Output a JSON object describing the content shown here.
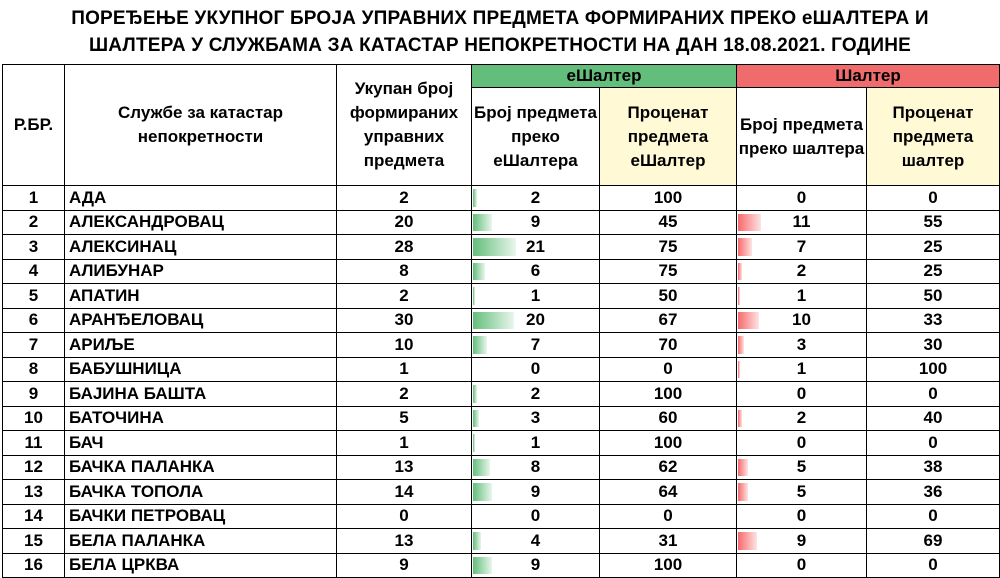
{
  "title": {
    "line1": "ПОРЕЂЕЊЕ УКУПНОГ БРОЈА УПРАВНИХ ПРЕДМЕТА ФОРМИРАНИХ ПРЕКО еШАЛТЕРА И",
    "line2": "ШАЛТЕРА У СЛУЖБАМА ЗА КАТАСТАР НЕПОКРЕТНОСТИ НА ДАН 18.08.2021. ГОДИНЕ"
  },
  "headers": {
    "rb": "Р.БР.",
    "service": "Службе за катастар непокретности",
    "total": "Укупан број формираних управних предмета",
    "group_e": "еШалтер",
    "group_s": "Шалтер",
    "e_count": "Број предмета преко еШалтера",
    "e_pct": "Проценат предмета еШалтер",
    "s_count": "Број предмета преко шалтера",
    "s_pct": "Проценат предмета шалтер"
  },
  "colors": {
    "eshalter_green": "#63be7b",
    "shalter_red": "#f06b6b",
    "percent_header_bg": "#fff9d6"
  },
  "bar_scale_max": 30,
  "rows": [
    {
      "rb": "1",
      "name": "АДА",
      "total": "2",
      "e_count": "2",
      "e_pct": "100",
      "s_count": "0",
      "s_pct": "0"
    },
    {
      "rb": "2",
      "name": "АЛЕКСАНДРОВАЦ",
      "total": "20",
      "e_count": "9",
      "e_pct": "45",
      "s_count": "11",
      "s_pct": "55"
    },
    {
      "rb": "3",
      "name": "АЛЕКСИНАЦ",
      "total": "28",
      "e_count": "21",
      "e_pct": "75",
      "s_count": "7",
      "s_pct": "25"
    },
    {
      "rb": "4",
      "name": "АЛИБУНАР",
      "total": "8",
      "e_count": "6",
      "e_pct": "75",
      "s_count": "2",
      "s_pct": "25"
    },
    {
      "rb": "5",
      "name": "АПАТИН",
      "total": "2",
      "e_count": "1",
      "e_pct": "50",
      "s_count": "1",
      "s_pct": "50"
    },
    {
      "rb": "6",
      "name": "АРАНЂЕЛОВАЦ",
      "total": "30",
      "e_count": "20",
      "e_pct": "67",
      "s_count": "10",
      "s_pct": "33"
    },
    {
      "rb": "7",
      "name": "АРИЉЕ",
      "total": "10",
      "e_count": "7",
      "e_pct": "70",
      "s_count": "3",
      "s_pct": "30"
    },
    {
      "rb": "8",
      "name": "БАБУШНИЦА",
      "total": "1",
      "e_count": "0",
      "e_pct": "0",
      "s_count": "1",
      "s_pct": "100"
    },
    {
      "rb": "9",
      "name": "БАЈИНА БАШТА",
      "total": "2",
      "e_count": "2",
      "e_pct": "100",
      "s_count": "0",
      "s_pct": "0"
    },
    {
      "rb": "10",
      "name": "БАТОЧИНА",
      "total": "5",
      "e_count": "3",
      "e_pct": "60",
      "s_count": "2",
      "s_pct": "40"
    },
    {
      "rb": "11",
      "name": "БАЧ",
      "total": "1",
      "e_count": "1",
      "e_pct": "100",
      "s_count": "0",
      "s_pct": "0"
    },
    {
      "rb": "12",
      "name": "БАЧКА ПАЛАНКА",
      "total": "13",
      "e_count": "8",
      "e_pct": "62",
      "s_count": "5",
      "s_pct": "38"
    },
    {
      "rb": "13",
      "name": "БАЧКА ТОПОЛА",
      "total": "14",
      "e_count": "9",
      "e_pct": "64",
      "s_count": "5",
      "s_pct": "36"
    },
    {
      "rb": "14",
      "name": "БАЧКИ ПЕТРОВАЦ",
      "total": "0",
      "e_count": "0",
      "e_pct": "0",
      "s_count": "0",
      "s_pct": "0"
    },
    {
      "rb": "15",
      "name": "БЕЛА ПАЛАНКА",
      "total": "13",
      "e_count": "4",
      "e_pct": "31",
      "s_count": "9",
      "s_pct": "69"
    },
    {
      "rb": "16",
      "name": "БЕЛА ЦРКВА",
      "total": "9",
      "e_count": "9",
      "e_pct": "100",
      "s_count": "0",
      "s_pct": "0"
    }
  ]
}
